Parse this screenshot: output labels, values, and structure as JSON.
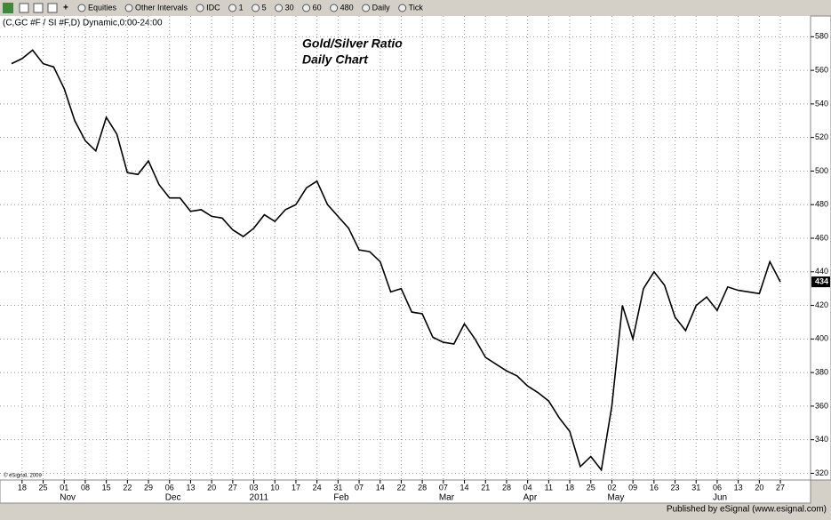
{
  "toolbar": {
    "items": [
      "Equities",
      "Other Intervals",
      "IDC",
      "1",
      "5",
      "30",
      "60",
      "480",
      "Daily",
      "Tick"
    ]
  },
  "chart_data": {
    "type": "line",
    "symbol": "(C,GC #F / SI #F,D) Dynamic,0:00-24:00",
    "title": "Gold/Silver Ratio",
    "subtitle": "Daily Chart",
    "watermark": "© eSignal, 2009",
    "categories": [
      null,
      "18",
      null,
      "25",
      null,
      "01",
      null,
      "08",
      null,
      "15",
      null,
      "22",
      null,
      "29",
      null,
      "06",
      null,
      "13",
      null,
      "20",
      null,
      "27",
      null,
      "03",
      null,
      "10",
      null,
      "17",
      null,
      "24",
      null,
      "31",
      null,
      "07",
      null,
      "14",
      null,
      "22",
      null,
      "28",
      null,
      "07",
      null,
      "14",
      null,
      "21",
      null,
      "28",
      null,
      "04",
      null,
      "11",
      null,
      "18",
      null,
      "25",
      null,
      "02",
      null,
      "09",
      null,
      "16",
      null,
      "23",
      null,
      "31",
      null,
      "06",
      null,
      "13",
      null,
      "20",
      null,
      "27"
    ],
    "months": [
      null,
      null,
      null,
      null,
      null,
      "Nov",
      null,
      null,
      null,
      null,
      null,
      null,
      null,
      null,
      null,
      "Dec",
      null,
      null,
      null,
      null,
      null,
      null,
      null,
      "2011",
      null,
      null,
      null,
      null,
      null,
      null,
      null,
      "Feb",
      null,
      null,
      null,
      null,
      null,
      null,
      null,
      null,
      null,
      "Mar",
      null,
      null,
      null,
      null,
      null,
      null,
      null,
      "Apr",
      null,
      null,
      null,
      null,
      null,
      null,
      null,
      "May",
      null,
      null,
      null,
      null,
      null,
      null,
      null,
      null,
      null,
      "Jun",
      null,
      null,
      null,
      null,
      null,
      null
    ],
    "values": [
      564,
      567,
      572,
      564,
      562,
      549,
      530,
      518,
      512,
      532,
      522,
      499,
      498,
      506,
      492,
      484,
      484,
      476,
      477,
      473,
      472,
      465,
      461,
      466,
      474,
      470,
      477,
      480,
      490,
      494,
      480,
      473,
      466,
      453,
      452,
      446,
      428,
      430,
      416,
      415,
      401,
      398,
      397,
      409,
      400,
      389,
      385,
      381,
      378,
      372,
      368,
      363,
      353,
      345,
      324,
      330,
      322,
      360,
      420,
      400,
      430,
      440,
      432,
      413,
      405,
      420,
      425,
      417,
      431,
      429,
      428,
      427,
      446,
      434
    ],
    "color": "#000000",
    "ylim": [
      316,
      586
    ],
    "yticks": [
      320,
      340,
      360,
      380,
      400,
      420,
      440,
      460,
      480,
      500,
      520,
      540,
      560,
      580
    ],
    "grid": true
  },
  "footer": "Published by eSignal (www.esignal.com)"
}
